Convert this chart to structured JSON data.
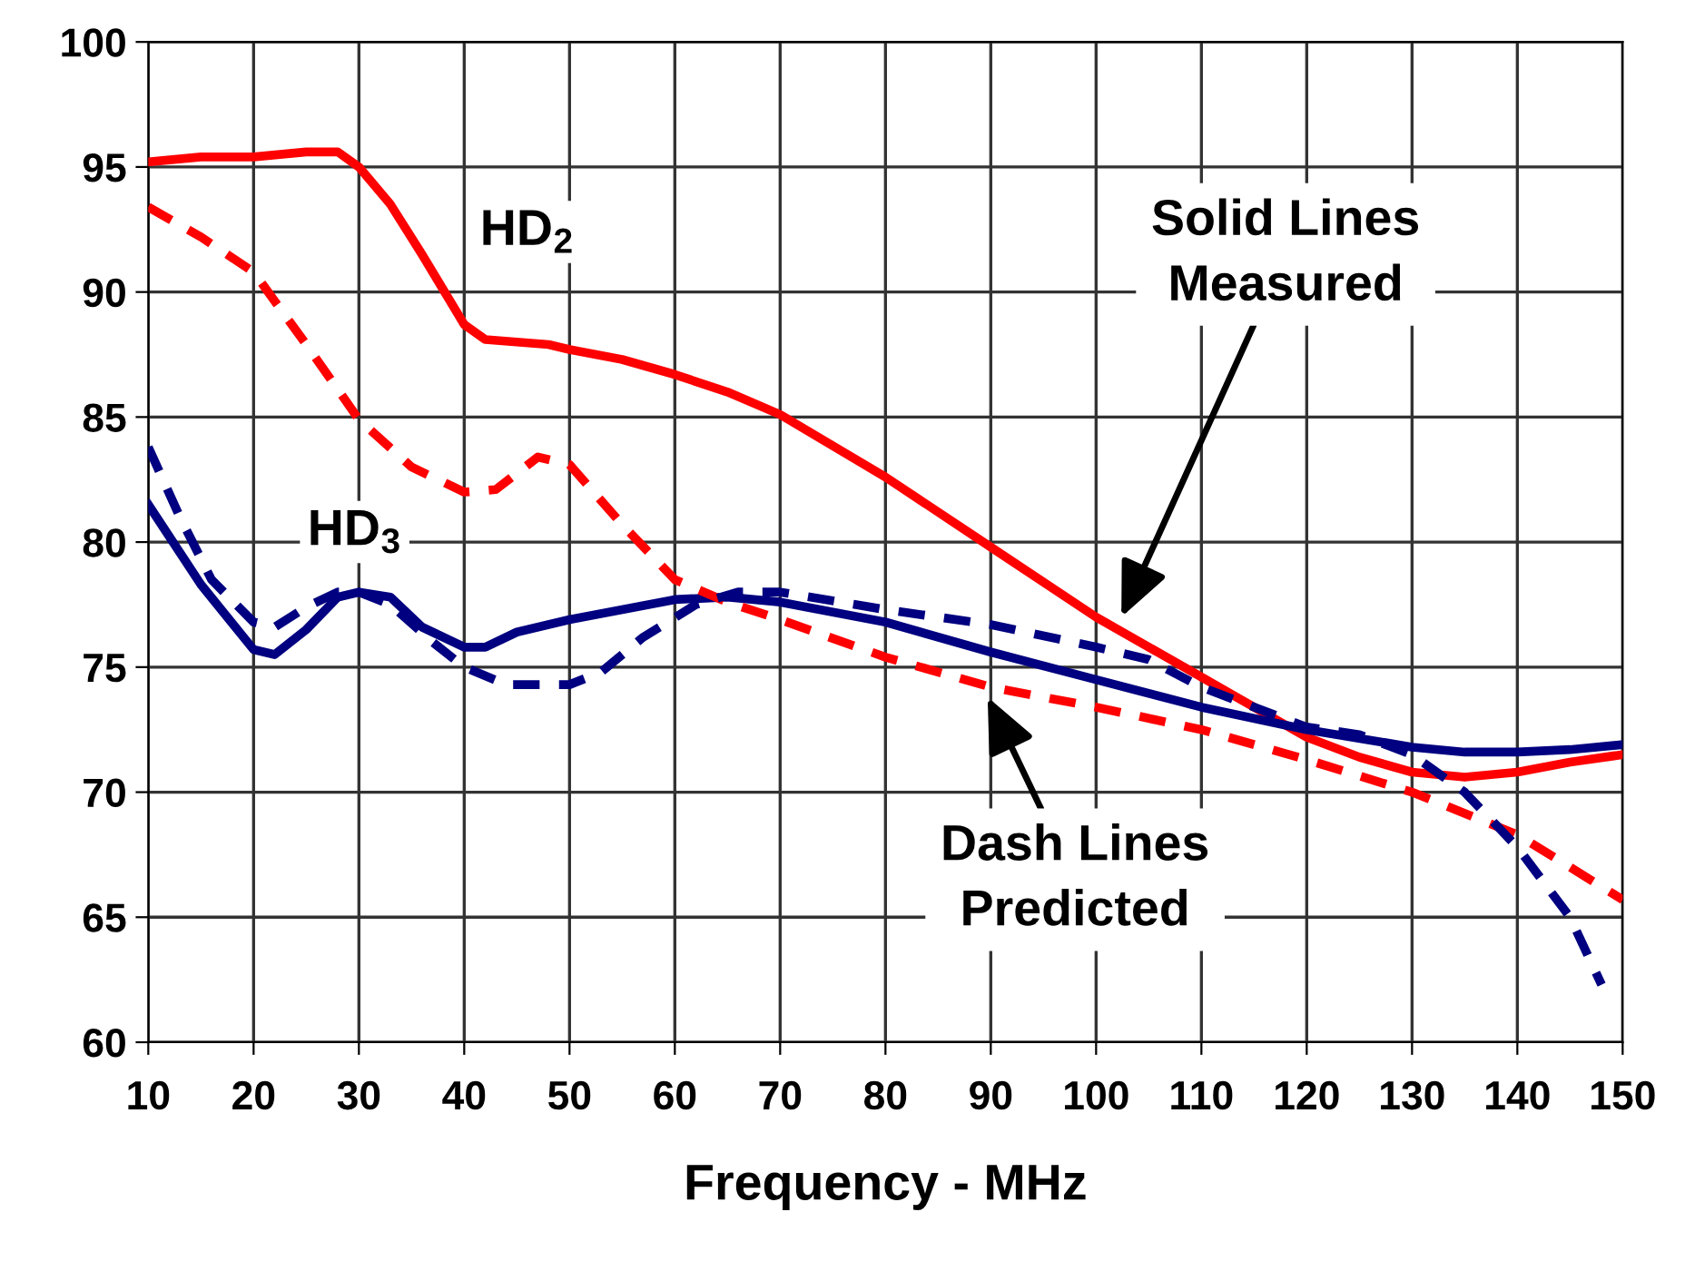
{
  "chart_data": {
    "type": "line",
    "xlabel": "Frequency - MHz",
    "xlim": [
      10,
      150
    ],
    "xticks": [
      10,
      20,
      30,
      40,
      50,
      60,
      70,
      80,
      90,
      100,
      110,
      120,
      130,
      140,
      150
    ],
    "ylim": [
      60,
      100
    ],
    "yticks": [
      60,
      65,
      70,
      75,
      80,
      85,
      90,
      95,
      100
    ],
    "grid": true,
    "legend": false,
    "marker": "none",
    "series": [
      {
        "color": "#ff0000",
        "line_style": "solid",
        "x": [
          10,
          15,
          20,
          25,
          28,
          30,
          33,
          36,
          40,
          42,
          45,
          48,
          50,
          55,
          60,
          65,
          70,
          80,
          90,
          100,
          110,
          120,
          125,
          130,
          135,
          140,
          145,
          150
        ],
        "values": [
          95.2,
          95.4,
          95.4,
          95.6,
          95.6,
          95.0,
          93.5,
          91.5,
          88.7,
          88.1,
          88.0,
          87.9,
          87.7,
          87.3,
          86.7,
          86.0,
          85.1,
          82.6,
          79.8,
          77.0,
          74.6,
          72.2,
          71.4,
          70.8,
          70.6,
          70.8,
          71.2,
          71.5
        ]
      },
      {
        "color": "#000080",
        "line_style": "solid",
        "x": [
          10,
          15,
          20,
          22,
          25,
          28,
          30,
          33,
          36,
          40,
          42,
          45,
          50,
          55,
          60,
          65,
          70,
          80,
          90,
          100,
          110,
          120,
          130,
          135,
          140,
          145,
          150
        ],
        "values": [
          81.5,
          78.3,
          75.7,
          75.5,
          76.5,
          77.8,
          78.0,
          77.8,
          76.6,
          75.8,
          75.8,
          76.4,
          76.9,
          77.3,
          77.7,
          77.8,
          77.6,
          76.8,
          75.6,
          74.5,
          73.4,
          72.5,
          71.8,
          71.6,
          71.6,
          71.7,
          71.9
        ]
      },
      {
        "color": "#ff0000",
        "line_style": "dashed",
        "x": [
          10,
          15,
          20,
          25,
          30,
          35,
          40,
          43,
          47,
          50,
          55,
          60,
          65,
          70,
          80,
          90,
          100,
          110,
          120,
          130,
          140,
          150
        ],
        "values": [
          93.4,
          92.2,
          90.8,
          87.9,
          84.9,
          83.0,
          82.0,
          82.1,
          83.4,
          83.1,
          80.7,
          78.5,
          77.6,
          76.9,
          75.4,
          74.2,
          73.4,
          72.5,
          71.3,
          70.0,
          68.3,
          65.7
        ]
      },
      {
        "color": "#000080",
        "line_style": "dashed",
        "x": [
          10,
          13,
          16,
          20,
          22,
          25,
          28,
          30,
          33,
          37,
          40,
          44,
          50,
          53,
          57,
          62,
          66,
          70,
          80,
          90,
          100,
          105,
          110,
          120,
          125,
          130,
          135,
          140,
          145,
          148
        ],
        "values": [
          83.8,
          81.0,
          78.5,
          76.8,
          76.6,
          77.4,
          78.0,
          78.0,
          77.5,
          76.0,
          75.0,
          74.3,
          74.3,
          74.8,
          76.2,
          77.5,
          78.0,
          78.0,
          77.3,
          76.7,
          75.8,
          75.3,
          74.2,
          72.6,
          72.3,
          71.5,
          70.0,
          67.8,
          65.0,
          62.3
        ]
      }
    ],
    "annotations": [
      "HD$_{2}$",
      "HD$_{3}$",
      {
        "text": "Solid Lines\nMeasured",
        "x": 102.4,
        "y": 77.0
      },
      {
        "text": "Dash Lines\nPredicted",
        "x": 89.7,
        "y": 73.8
      }
    ]
  }
}
